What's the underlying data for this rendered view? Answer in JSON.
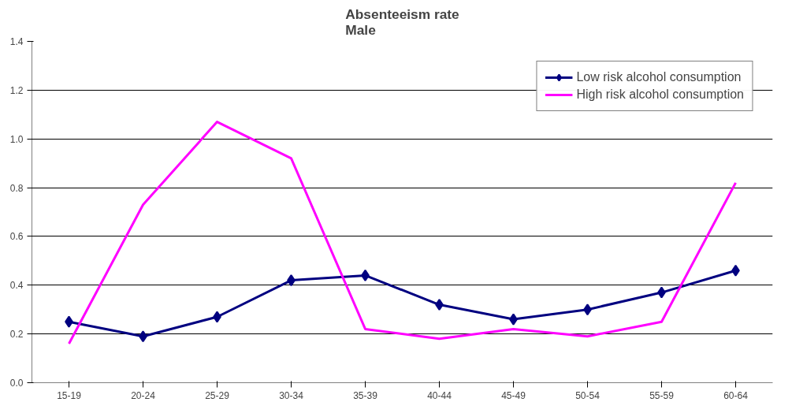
{
  "chart_data": {
    "type": "line",
    "title": "Absenteeism rate\nMale",
    "categories": [
      "15-19",
      "20-24",
      "25-29",
      "30-34",
      "35-39",
      "40-44",
      "45-49",
      "50-54",
      "55-59",
      "60-64"
    ],
    "series": [
      {
        "name": "Low risk alcohol consumption",
        "color": "#000080",
        "marker": "diamond",
        "values": [
          0.25,
          0.19,
          0.27,
          0.42,
          0.44,
          0.32,
          0.26,
          0.3,
          0.37,
          0.46
        ]
      },
      {
        "name": "High risk alcohol consumption",
        "color": "#ff00ff",
        "marker": "none",
        "values": [
          0.16,
          0.73,
          1.07,
          0.92,
          0.22,
          0.18,
          0.22,
          0.19,
          0.25,
          0.82
        ]
      }
    ],
    "ylim": [
      0,
      1.4
    ],
    "yticks": [
      {
        "value": 0,
        "label": "0.0"
      },
      {
        "value": 0.2,
        "label": "0.2"
      },
      {
        "value": 0.4,
        "label": "0.4"
      },
      {
        "value": 0.6,
        "label": "0.6"
      },
      {
        "value": 0.8,
        "label": "0.8"
      },
      {
        "value": 1.0,
        "label": "1.0"
      },
      {
        "value": 1.2,
        "label": "1.2"
      },
      {
        "value": 1.4,
        "label": "1.4"
      }
    ],
    "grid": "y",
    "legend": "top right",
    "line_style": "solid"
  }
}
